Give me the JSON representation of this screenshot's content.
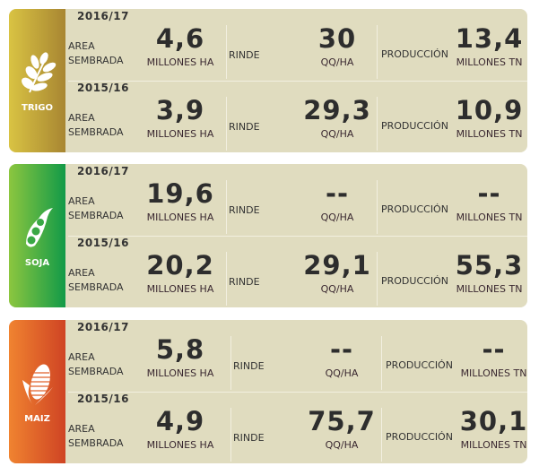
{
  "labels": {
    "area": "AREA SEMBRADA",
    "area_1": "AREA",
    "area_2": "SEMBRADA",
    "rinde": "RINDE",
    "produccion": "PRODUCCIÓN",
    "unit_area": "MILLONES HA",
    "unit_rinde": "QQ/HA",
    "unit_prod": "MILLONES TN"
  },
  "crops": [
    {
      "name": "TRIGO",
      "icon": "wheat-icon",
      "colors": [
        "#d9c343",
        "#a88632"
      ],
      "rows": [
        {
          "year": "2016/17",
          "area": "4,6",
          "rinde": "30",
          "produccion": "13,4"
        },
        {
          "year": "2015/16",
          "area": "3,9",
          "rinde": "29,3",
          "produccion": "10,9"
        }
      ]
    },
    {
      "name": "SOJA",
      "icon": "soybean-icon",
      "colors": [
        "#8cc63f",
        "#129a48"
      ],
      "rows": [
        {
          "year": "2016/17",
          "area": "19,6",
          "rinde": "--",
          "produccion": "--"
        },
        {
          "year": "2015/16",
          "area": "20,2",
          "rinde": "29,1",
          "produccion": "55,3"
        }
      ]
    },
    {
      "name": "MAIZ",
      "icon": "corn-icon",
      "colors": [
        "#f08330",
        "#cf4424"
      ],
      "rows": [
        {
          "year": "2016/17",
          "area": "5,8",
          "rinde": "--",
          "produccion": "--"
        },
        {
          "year": "2015/16",
          "area": "4,9",
          "rinde": "75,7",
          "produccion": "30,1"
        }
      ]
    }
  ]
}
